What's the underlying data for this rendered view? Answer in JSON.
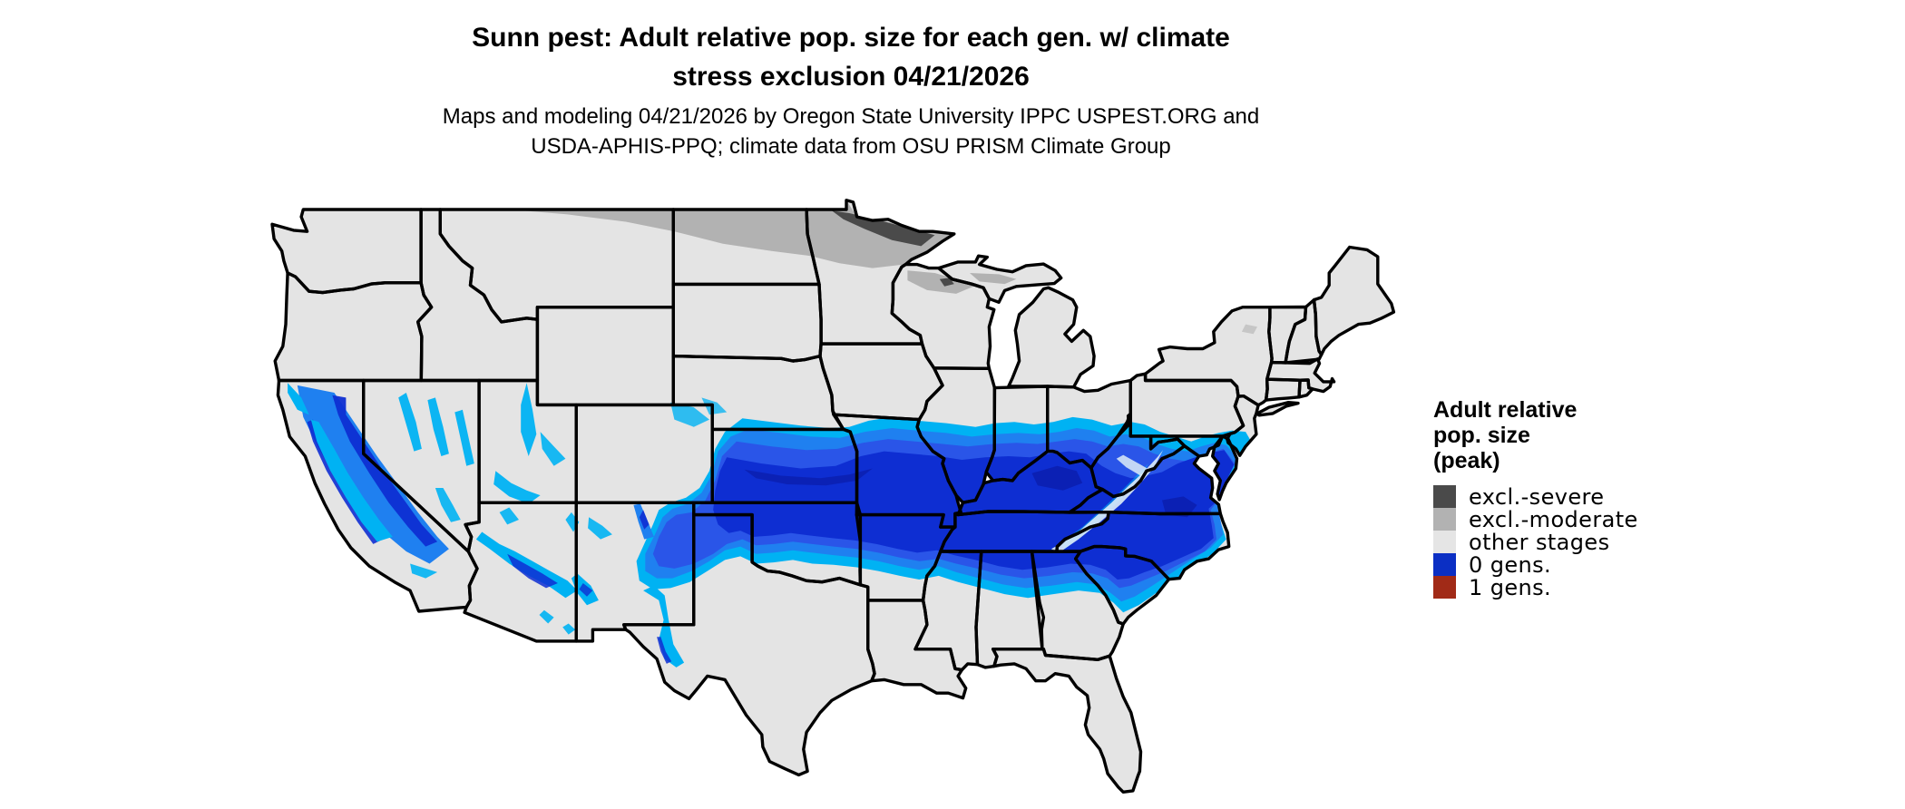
{
  "title": {
    "line1": "Sunn pest: Adult relative pop. size for each gen. w/ climate",
    "line2": "stress exclusion 04/21/2026"
  },
  "subtitle": {
    "line1": "Maps and modeling 04/21/2026 by Oregon State University IPPC USPEST.ORG and",
    "line2": "USDA-APHIS-PPQ; climate data from OSU PRISM Climate Group"
  },
  "legend": {
    "title": {
      "line1": "Adult relative",
      "line2": "pop. size",
      "line3": "(peak)"
    },
    "items": [
      {
        "label": "excl.-severe",
        "color": "#4a4a4a"
      },
      {
        "label": "excl.-moderate",
        "color": "#b2b2b2"
      },
      {
        "label": "other stages",
        "color": "#e5e5e5"
      },
      {
        "label": "0 gens.",
        "color": "#0b2fc4"
      },
      {
        "label": "1 gens.",
        "color": "#a12a17"
      }
    ]
  },
  "map": {
    "palette": {
      "land": "#e4e4e4",
      "border": "#000000",
      "excl_moderate": "#b2b2b2",
      "excl_severe": "#4a4a4a",
      "pop_cyan": "#00b2f3",
      "pop_azure": "#1f80f0",
      "pop_medium": "#2a55e8",
      "pop_deep": "#0e2ed2",
      "pop_navy": "#0b1fb0",
      "ridge_light": "#ddedf7"
    }
  }
}
